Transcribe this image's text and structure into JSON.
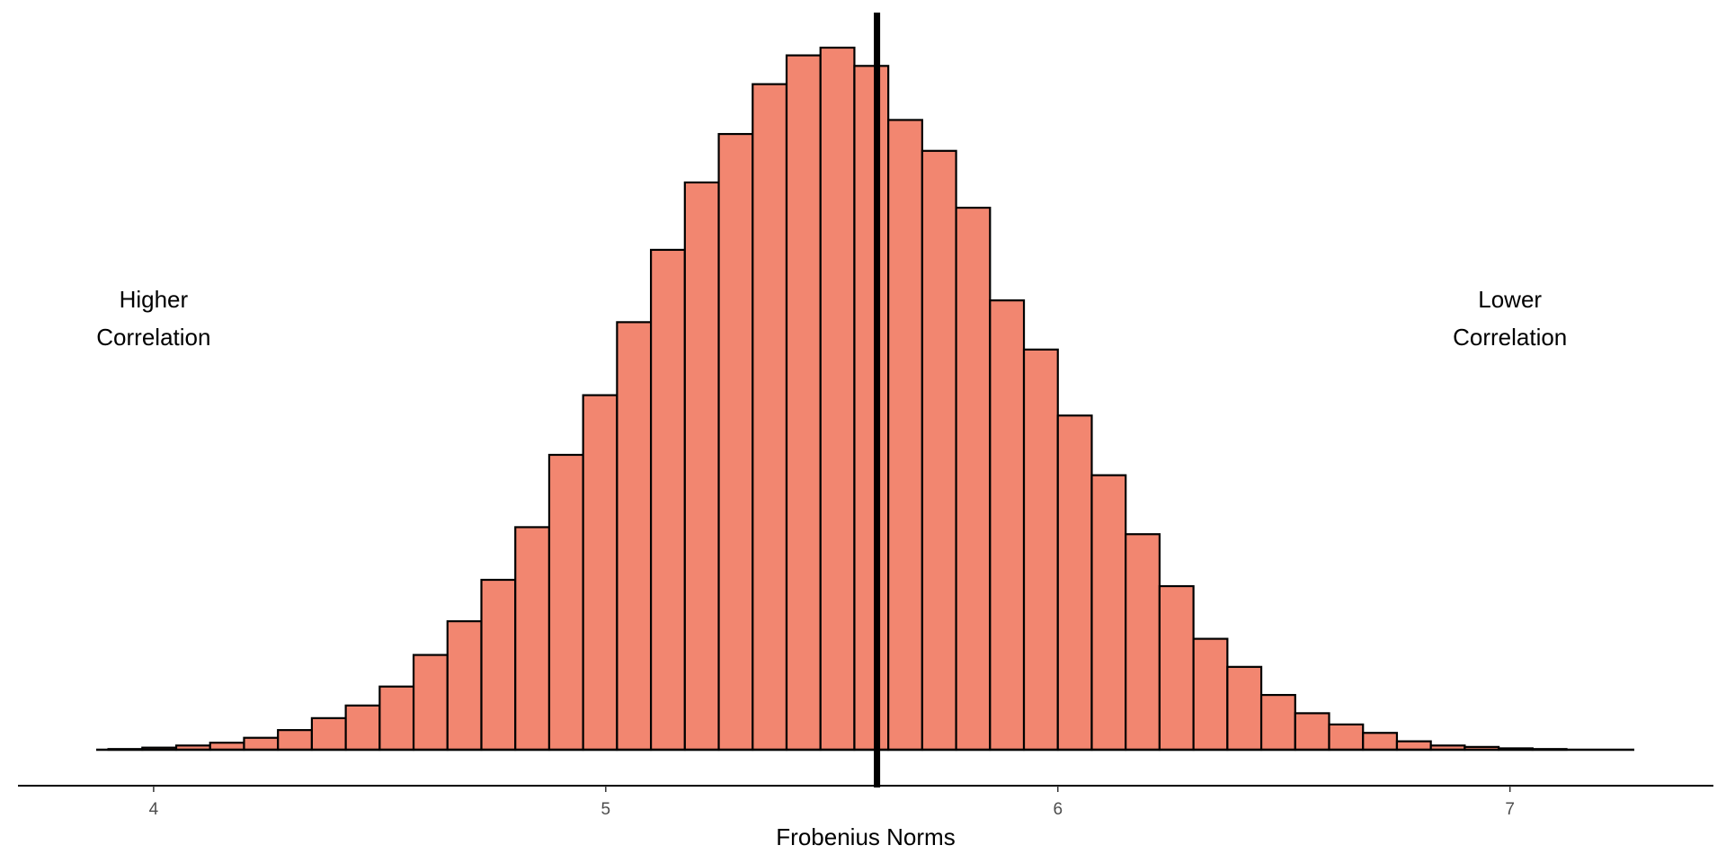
{
  "chart_data": {
    "type": "bar",
    "subtype": "histogram",
    "title": "",
    "xlabel": "Frobenius Norms",
    "ylabel": "",
    "xlim": [
      3.7,
      7.45
    ],
    "ylim": [
      0,
      1.0
    ],
    "xticks": [
      4,
      5,
      6,
      7
    ],
    "xtick_labels": [
      "4",
      "5",
      "6",
      "7"
    ],
    "bin_width": 0.075,
    "bin_start": 3.9,
    "values": [
      0.001,
      0.003,
      0.006,
      0.01,
      0.017,
      0.028,
      0.045,
      0.063,
      0.09,
      0.135,
      0.183,
      0.242,
      0.317,
      0.42,
      0.505,
      0.609,
      0.712,
      0.808,
      0.877,
      0.948,
      0.989,
      1.0,
      0.974,
      0.897,
      0.853,
      0.772,
      0.64,
      0.57,
      0.476,
      0.391,
      0.307,
      0.233,
      0.158,
      0.118,
      0.078,
      0.052,
      0.036,
      0.024,
      0.012,
      0.006,
      0.004,
      0.002,
      0.001
    ],
    "bar_fill": "#F28670",
    "bar_stroke": "#000000",
    "reference_line": {
      "x": 5.6,
      "color": "#000000"
    },
    "grid": false,
    "legend": "none",
    "annotations": [
      {
        "lines": [
          "Higher",
          "Correlation"
        ],
        "x": 4.0
      },
      {
        "lines": [
          "Lower",
          "Correlation"
        ],
        "x": 7.0
      }
    ]
  }
}
